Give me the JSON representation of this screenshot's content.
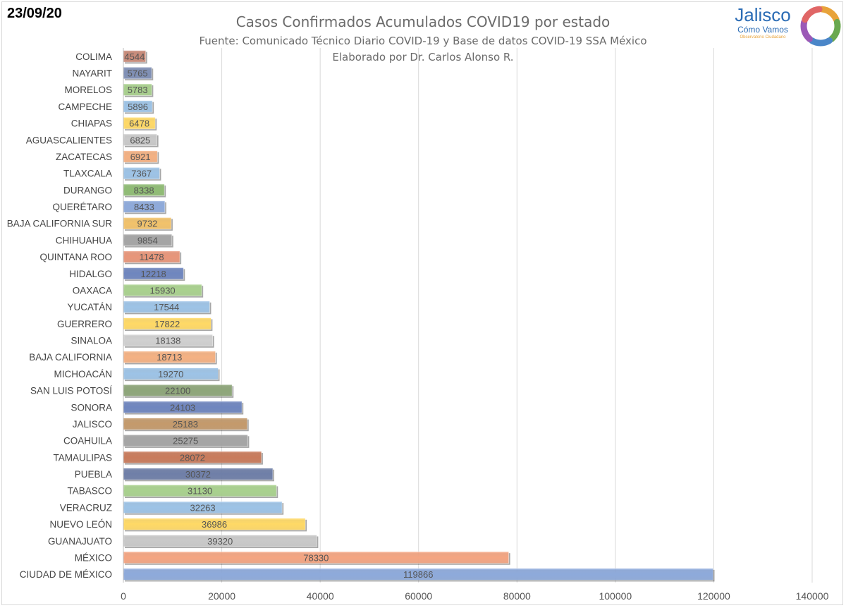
{
  "header": {
    "date": "23/09/20",
    "title": "Casos Confirmados Acumulados COVID19 por estado",
    "subtitle1": "Fuente: Comunicado Técnico Diario COVID-19 y Base de datos COVID-19 SSA México",
    "subtitle2": "Elaborado por Dr. Carlos Alonso R."
  },
  "logo": {
    "word": "Jalisco",
    "sub": "Cómo Vamos",
    "tag": "Observatorio Ciudadano",
    "colors": [
      "#e8a33a",
      "#6aa84f",
      "#4a86c8",
      "#9b59b6",
      "#e06666"
    ]
  },
  "chart_data": {
    "type": "bar",
    "orientation": "horizontal",
    "title": "Casos Confirmados Acumulados COVID19 por estado",
    "xlim": [
      0,
      140000
    ],
    "xticks": [
      0,
      20000,
      40000,
      60000,
      80000,
      100000,
      120000,
      140000
    ],
    "grid": true,
    "categories": [
      "COLIMA",
      "NAYARIT",
      "MORELOS",
      "CAMPECHE",
      "CHIAPAS",
      "AGUASCALIENTES",
      "ZACATECAS",
      "TLAXCALA",
      "DURANGO",
      "QUERÉTARO",
      "BAJA CALIFORNIA SUR",
      "CHIHUAHUA",
      "QUINTANA ROO",
      "HIDALGO",
      "OAXACA",
      "YUCATÁN",
      "GUERRERO",
      "SINALOA",
      "BAJA CALIFORNIA",
      "MICHOACÁN",
      "SAN LUIS POTOSÍ",
      "SONORA",
      "JALISCO",
      "COAHUILA",
      "TAMAULIPAS",
      "PUEBLA",
      "TABASCO",
      "VERACRUZ",
      "NUEVO LEÓN",
      "GUANAJUATO",
      "MÉXICO",
      "CIUDAD DE MÉXICO"
    ],
    "values": [
      4544,
      5765,
      5783,
      5896,
      6478,
      6825,
      6921,
      7367,
      8338,
      8433,
      9732,
      9854,
      11478,
      12218,
      15930,
      17544,
      17822,
      18138,
      18713,
      19270,
      22100,
      24103,
      25183,
      25275,
      28072,
      30372,
      31130,
      32263,
      36986,
      39320,
      78330,
      119866
    ],
    "labels": [
      "4544",
      "5765",
      "5783",
      "5896",
      "6478",
      "6825",
      "6921",
      "7367",
      "8338",
      "8433",
      "9732",
      "9854",
      "11478",
      "12218",
      "15930",
      "17544",
      "17822",
      "18138",
      "18713",
      "19270",
      "22100",
      "24103",
      "25183",
      "25275",
      "28072",
      "30372",
      "31130",
      "32263",
      "36986",
      "39320",
      "78330",
      "119866"
    ],
    "colors": [
      "#c98a78",
      "#7f8fb5",
      "#a8d08d",
      "#9dc3e6",
      "#ffd966",
      "#c9c9c9",
      "#f4b183",
      "#9dc3e6",
      "#8fbc74",
      "#8eaadb",
      "#f2c26b",
      "#a5a5a5",
      "#e8967a",
      "#6f86bf",
      "#a9d18e",
      "#9dc3e6",
      "#ffd966",
      "#d0d0d0",
      "#f4b183",
      "#9dc3e6",
      "#8ea67a",
      "#6f86bf",
      "#c49a6c",
      "#a5a5a5",
      "#c97b5c",
      "#6f7fa8",
      "#a9d18e",
      "#9dc3e6",
      "#ffd966",
      "#c9c9c9",
      "#f4a582",
      "#8eaadb"
    ]
  }
}
